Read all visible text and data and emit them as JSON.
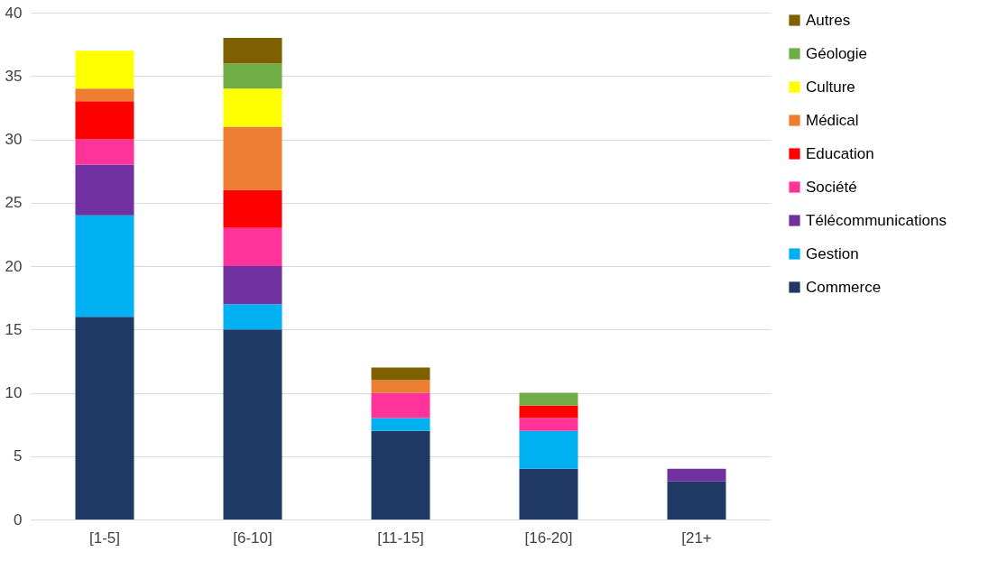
{
  "chart_data": {
    "type": "bar",
    "stacked": true,
    "categories": [
      "[1-5]",
      "[6-10]",
      "[11-15]",
      "[16-20]",
      "[21+"
    ],
    "series": [
      {
        "name": "Commerce",
        "color": "#203864",
        "values": [
          16,
          15,
          7,
          4,
          3
        ]
      },
      {
        "name": "Gestion",
        "color": "#00b0f0",
        "values": [
          8,
          2,
          1,
          3,
          null
        ]
      },
      {
        "name": "Télécommunications",
        "color": "#7030a0",
        "values": [
          4,
          3,
          null,
          null,
          1
        ]
      },
      {
        "name": "Société",
        "color": "#ff3399",
        "values": [
          2,
          3,
          2,
          1,
          null
        ]
      },
      {
        "name": "Education",
        "color": "#ff0000",
        "values": [
          3,
          3,
          null,
          1,
          null
        ]
      },
      {
        "name": "Médical",
        "color": "#ed7d31",
        "values": [
          1,
          5,
          1,
          null,
          null
        ]
      },
      {
        "name": "Culture",
        "color": "#ffff00",
        "values": [
          3,
          3,
          null,
          null,
          null
        ]
      },
      {
        "name": "Géologie",
        "color": "#70ad47",
        "values": [
          null,
          2,
          null,
          1,
          null
        ]
      },
      {
        "name": "Autres",
        "color": "#7f6000",
        "values": [
          null,
          2,
          1,
          null,
          null
        ]
      }
    ],
    "ylim": [
      0,
      40
    ],
    "yticks": [
      0,
      5,
      10,
      15,
      20,
      25,
      30,
      35,
      40
    ],
    "grid": "y",
    "legend": "right"
  }
}
